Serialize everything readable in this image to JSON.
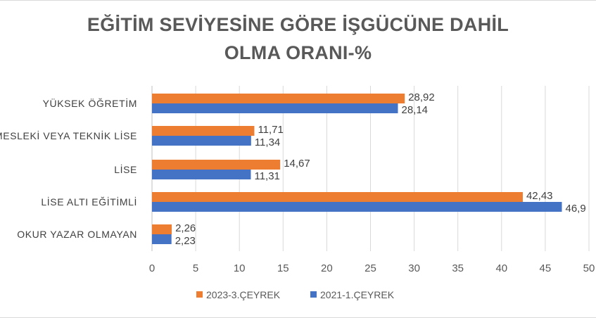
{
  "chart_data": {
    "type": "bar",
    "orientation": "horizontal",
    "title": "EĞİTİM SEVİYESİNE GÖRE İŞGÜCÜNE DAHİL OLMA ORANI-%",
    "title_lines": [
      "EĞİTİM SEVİYESİNE GÖRE İŞGÜCÜNE DAHİL",
      "OLMA ORANI-%"
    ],
    "categories": [
      "YÜKSEK ÖĞRETİM",
      "MESLEKİ VEYA TEKNİK LİSE",
      "LİSE",
      "LİSE ALTI EĞİTİMLİ",
      "OKUR YAZAR OLMAYAN"
    ],
    "series": [
      {
        "name": "2023-3.ÇEYREK",
        "color": "#ED7D31",
        "values": [
          28.92,
          11.71,
          14.67,
          42.43,
          2.26
        ],
        "labels": [
          "28,92",
          "11,71",
          "14,67",
          "42,43",
          "2,26"
        ]
      },
      {
        "name": "2021-1.ÇEYREK",
        "color": "#4472C4",
        "values": [
          28.14,
          11.34,
          11.31,
          46.9,
          2.23
        ],
        "labels": [
          "28,14",
          "11,34",
          "11,31",
          "46,9",
          "2,23"
        ]
      }
    ],
    "xlim": [
      0,
      50
    ],
    "xticks": [
      "0",
      "5",
      "10",
      "15",
      "20",
      "25",
      "30",
      "35",
      "40",
      "45",
      "50"
    ],
    "grid": true,
    "legend_position": "bottom"
  }
}
